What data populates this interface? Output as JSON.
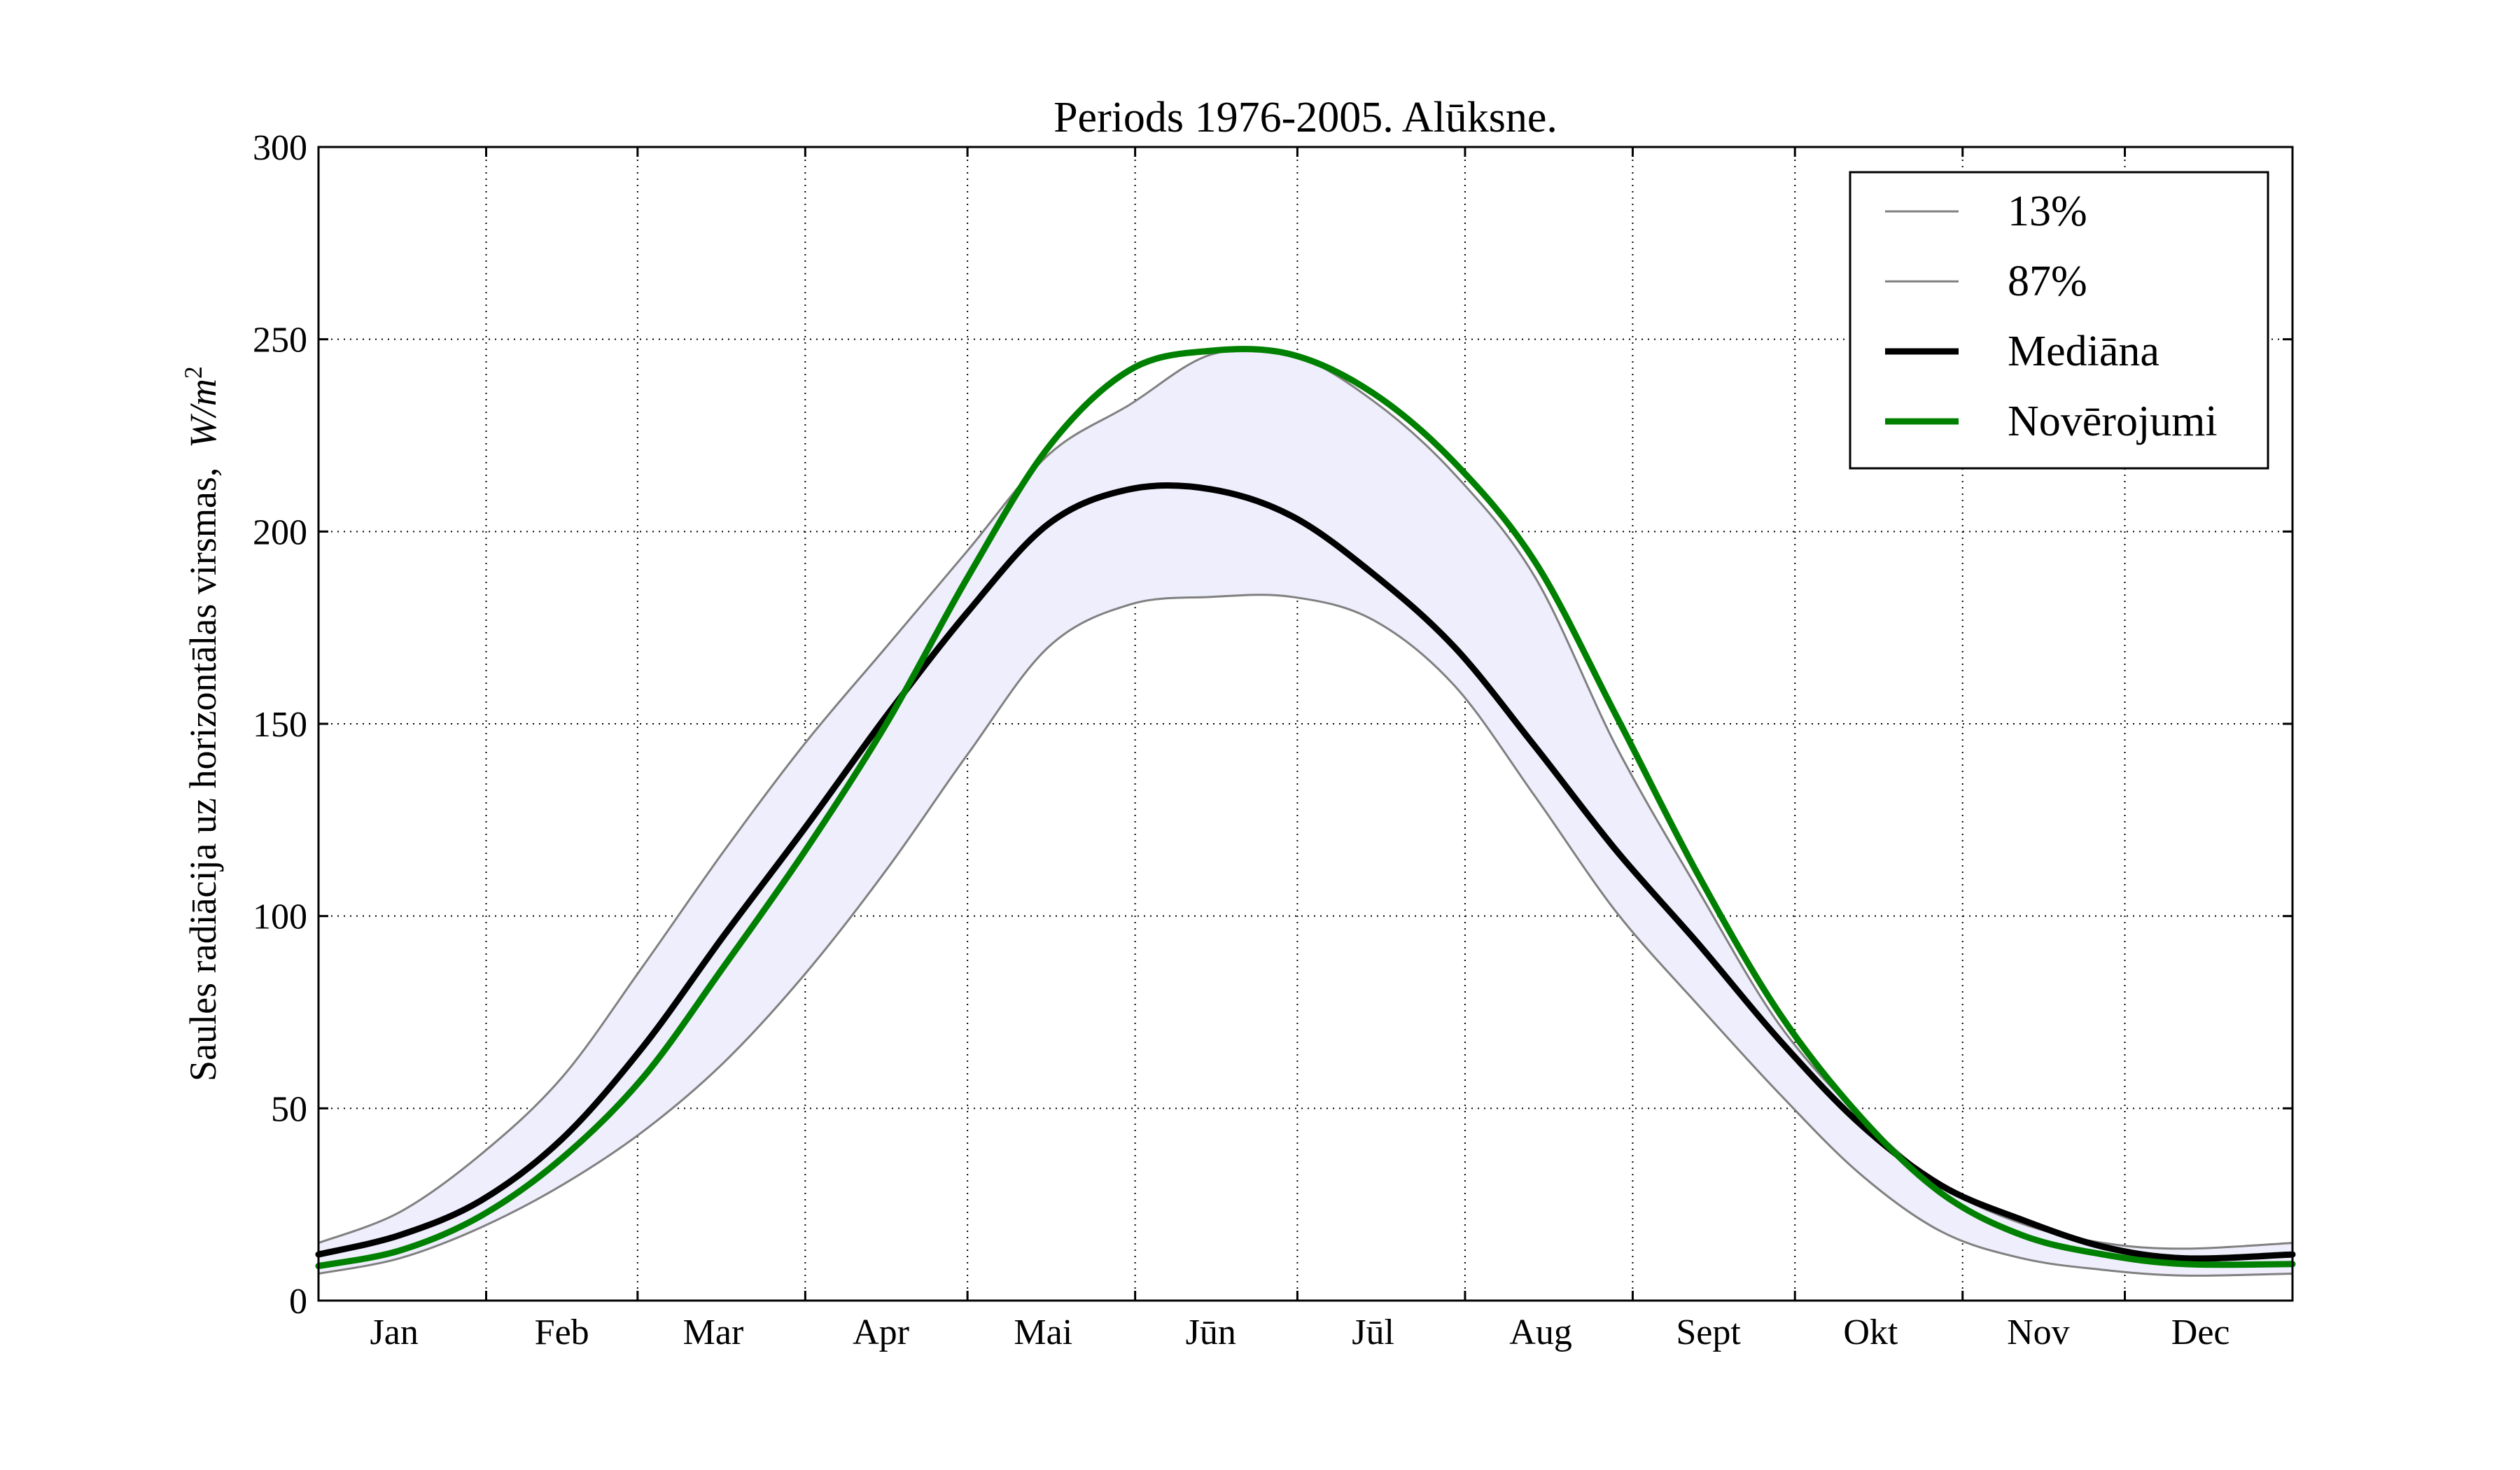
{
  "chart_data": {
    "type": "line",
    "title": "Periods 1976-2005. Alūksne.",
    "ylabel": "Saules radiācija uz horizontālas virsmas, W/m²",
    "ylabel_text": "Saules radiācija uz horizontālas virsmas,",
    "ylabel_math_w": "W",
    "ylabel_math_m": "/m",
    "ylabel_math_sup": "2",
    "xlabel": "",
    "xlim": [
      0,
      365
    ],
    "ylim": [
      0,
      300
    ],
    "yticks": [
      0,
      50,
      100,
      150,
      200,
      250,
      300
    ],
    "month_boundaries": [
      31,
      59,
      90,
      120,
      151,
      181,
      212,
      243,
      273,
      304,
      334
    ],
    "months": [
      {
        "label": "Jan",
        "center": 14
      },
      {
        "label": "Feb",
        "center": 45
      },
      {
        "label": "Mar",
        "center": 73
      },
      {
        "label": "Apr",
        "center": 104
      },
      {
        "label": "Mai",
        "center": 134
      },
      {
        "label": "Jūn",
        "center": 165
      },
      {
        "label": "Jūl",
        "center": 195
      },
      {
        "label": "Aug",
        "center": 226
      },
      {
        "label": "Sept",
        "center": 257
      },
      {
        "label": "Okt",
        "center": 287
      },
      {
        "label": "Nov",
        "center": 318
      },
      {
        "label": "Dec",
        "center": 348
      }
    ],
    "grid": true,
    "legend_position": "top-right",
    "band_color": "#eeeefc",
    "series": [
      {
        "name": "13%",
        "color": "#808080",
        "width": 3,
        "x": [
          0,
          15,
          30,
          45,
          60,
          75,
          90,
          105,
          120,
          135,
          150,
          165,
          180,
          195,
          210,
          225,
          240,
          255,
          270,
          285,
          300,
          315,
          330,
          345,
          365
        ],
        "y": [
          7,
          11,
          19,
          30,
          44,
          62,
          85,
          112,
          142,
          170,
          181,
          183,
          183,
          177,
          160,
          131,
          101,
          77,
          54,
          33,
          18,
          11,
          8,
          6.5,
          7
        ]
      },
      {
        "name": "87%",
        "color": "#808080",
        "width": 3,
        "x": [
          0,
          15,
          30,
          45,
          60,
          75,
          90,
          105,
          120,
          135,
          150,
          165,
          180,
          195,
          210,
          225,
          240,
          255,
          270,
          285,
          300,
          315,
          330,
          345,
          365
        ],
        "y": [
          15,
          23,
          38,
          58,
          87,
          117,
          145,
          170,
          195,
          220,
          233,
          246,
          246,
          234,
          215,
          188,
          144,
          107,
          72,
          48,
          30,
          20,
          15,
          13.5,
          15
        ]
      },
      {
        "name": "Mediāna",
        "color": "#000000",
        "width": 9,
        "x": [
          0,
          15,
          30,
          45,
          60,
          75,
          90,
          105,
          120,
          135,
          150,
          165,
          180,
          195,
          210,
          225,
          240,
          255,
          270,
          285,
          300,
          315,
          330,
          345,
          365
        ],
        "y": [
          12,
          17,
          26,
          42,
          66,
          95,
          123,
          152,
          179,
          202,
          211,
          211,
          204,
          189,
          170,
          144,
          117,
          93,
          68,
          46,
          30,
          21,
          14,
          11,
          12
        ]
      },
      {
        "name": "Novērojumi",
        "color": "#008000",
        "width": 9,
        "x": [
          0,
          15,
          30,
          45,
          60,
          75,
          90,
          105,
          120,
          135,
          150,
          165,
          180,
          195,
          210,
          225,
          240,
          255,
          270,
          285,
          300,
          315,
          330,
          345,
          365
        ],
        "y": [
          9,
          13,
          22,
          37,
          58,
          87,
          117,
          150,
          188,
          222,
          242,
          247,
          246,
          236,
          218,
          192,
          152,
          111,
          75,
          48,
          28,
          17,
          12,
          9.5,
          9.5
        ]
      }
    ]
  }
}
